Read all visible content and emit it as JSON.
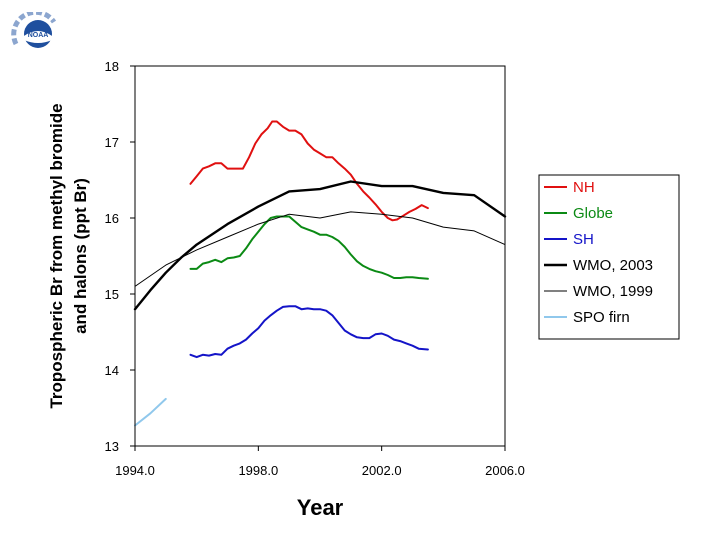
{
  "logo": {
    "text": "NOAA",
    "icon": "noaa-logo-icon",
    "color": "#1f4f9e"
  },
  "chart_data": {
    "type": "line",
    "title": "",
    "xlabel": "Year",
    "ylabel": "Tropospheric Br from methyl bromide and halons (ppt Br)",
    "ylabel_lines": [
      "Tropospheric Br from methyl bromide",
      "and halons (ppt Br)"
    ],
    "xlim": [
      1994,
      2006
    ],
    "ylim": [
      13,
      18
    ],
    "xticks": [
      1994,
      1998,
      2002,
      2006
    ],
    "xtick_labels": [
      "1994.0",
      "1998.0",
      "2002.0",
      "2006.0"
    ],
    "yticks": [
      13,
      14,
      15,
      16,
      17,
      18
    ],
    "ytick_labels": [
      "13",
      "14",
      "15",
      "16",
      "17",
      "18"
    ],
    "grid": false,
    "legend_position": "right",
    "series": [
      {
        "name": "NH",
        "color": "#e01010",
        "width": 2,
        "points": [
          [
            1995.8,
            16.45
          ],
          [
            1996.0,
            16.55
          ],
          [
            1996.2,
            16.65
          ],
          [
            1996.4,
            16.68
          ],
          [
            1996.6,
            16.72
          ],
          [
            1996.8,
            16.72
          ],
          [
            1997.0,
            16.65
          ],
          [
            1997.3,
            16.65
          ],
          [
            1997.5,
            16.65
          ],
          [
            1997.7,
            16.8
          ],
          [
            1997.9,
            16.98
          ],
          [
            1998.1,
            17.1
          ],
          [
            1998.3,
            17.18
          ],
          [
            1998.45,
            17.27
          ],
          [
            1998.6,
            17.27
          ],
          [
            1998.8,
            17.2
          ],
          [
            1999.0,
            17.15
          ],
          [
            1999.2,
            17.15
          ],
          [
            1999.4,
            17.1
          ],
          [
            1999.6,
            16.98
          ],
          [
            1999.8,
            16.9
          ],
          [
            2000.0,
            16.85
          ],
          [
            2000.2,
            16.8
          ],
          [
            2000.4,
            16.8
          ],
          [
            2000.6,
            16.72
          ],
          [
            2000.8,
            16.65
          ],
          [
            2001.0,
            16.57
          ],
          [
            2001.2,
            16.45
          ],
          [
            2001.4,
            16.35
          ],
          [
            2001.6,
            16.27
          ],
          [
            2001.8,
            16.18
          ],
          [
            2002.0,
            16.08
          ],
          [
            2002.2,
            16.0
          ],
          [
            2002.35,
            15.97
          ],
          [
            2002.5,
            15.98
          ],
          [
            2002.7,
            16.03
          ],
          [
            2002.9,
            16.08
          ],
          [
            2003.1,
            16.12
          ],
          [
            2003.3,
            16.17
          ],
          [
            2003.5,
            16.13
          ]
        ]
      },
      {
        "name": "Globe",
        "color": "#0b8a14",
        "width": 2,
        "points": [
          [
            1995.8,
            15.33
          ],
          [
            1996.0,
            15.33
          ],
          [
            1996.2,
            15.4
          ],
          [
            1996.4,
            15.42
          ],
          [
            1996.6,
            15.45
          ],
          [
            1996.8,
            15.42
          ],
          [
            1997.0,
            15.47
          ],
          [
            1997.2,
            15.48
          ],
          [
            1997.4,
            15.5
          ],
          [
            1997.6,
            15.6
          ],
          [
            1997.8,
            15.72
          ],
          [
            1998.0,
            15.82
          ],
          [
            1998.2,
            15.92
          ],
          [
            1998.4,
            16.0
          ],
          [
            1998.6,
            16.02
          ],
          [
            1998.8,
            16.02
          ],
          [
            1999.0,
            16.02
          ],
          [
            1999.2,
            15.95
          ],
          [
            1999.4,
            15.88
          ],
          [
            1999.6,
            15.85
          ],
          [
            1999.8,
            15.82
          ],
          [
            2000.0,
            15.78
          ],
          [
            2000.2,
            15.78
          ],
          [
            2000.4,
            15.75
          ],
          [
            2000.6,
            15.7
          ],
          [
            2000.8,
            15.62
          ],
          [
            2001.0,
            15.52
          ],
          [
            2001.2,
            15.43
          ],
          [
            2001.4,
            15.37
          ],
          [
            2001.6,
            15.33
          ],
          [
            2001.8,
            15.3
          ],
          [
            2002.0,
            15.28
          ],
          [
            2002.2,
            15.25
          ],
          [
            2002.4,
            15.21
          ],
          [
            2002.6,
            15.21
          ],
          [
            2002.8,
            15.22
          ],
          [
            2003.0,
            15.22
          ],
          [
            2003.2,
            15.21
          ],
          [
            2003.5,
            15.2
          ]
        ]
      },
      {
        "name": "SH",
        "color": "#1414c8",
        "width": 2,
        "points": [
          [
            1995.8,
            14.2
          ],
          [
            1996.0,
            14.17
          ],
          [
            1996.2,
            14.2
          ],
          [
            1996.4,
            14.19
          ],
          [
            1996.6,
            14.21
          ],
          [
            1996.8,
            14.2
          ],
          [
            1997.0,
            14.28
          ],
          [
            1997.2,
            14.32
          ],
          [
            1997.4,
            14.35
          ],
          [
            1997.6,
            14.4
          ],
          [
            1997.8,
            14.48
          ],
          [
            1998.0,
            14.55
          ],
          [
            1998.2,
            14.65
          ],
          [
            1998.4,
            14.72
          ],
          [
            1998.6,
            14.78
          ],
          [
            1998.8,
            14.83
          ],
          [
            1999.0,
            14.84
          ],
          [
            1999.2,
            14.84
          ],
          [
            1999.4,
            14.8
          ],
          [
            1999.6,
            14.81
          ],
          [
            1999.8,
            14.8
          ],
          [
            2000.0,
            14.8
          ],
          [
            2000.2,
            14.78
          ],
          [
            2000.4,
            14.72
          ],
          [
            2000.6,
            14.62
          ],
          [
            2000.8,
            14.52
          ],
          [
            2001.0,
            14.47
          ],
          [
            2001.2,
            14.43
          ],
          [
            2001.4,
            14.42
          ],
          [
            2001.6,
            14.42
          ],
          [
            2001.8,
            14.47
          ],
          [
            2002.0,
            14.48
          ],
          [
            2002.2,
            14.45
          ],
          [
            2002.4,
            14.4
          ],
          [
            2002.6,
            14.38
          ],
          [
            2002.8,
            14.35
          ],
          [
            2003.0,
            14.32
          ],
          [
            2003.2,
            14.28
          ],
          [
            2003.5,
            14.27
          ]
        ]
      },
      {
        "name": "WMO, 2003",
        "color": "#000000",
        "width": 2.4,
        "points": [
          [
            1994.0,
            14.8
          ],
          [
            1994.5,
            15.05
          ],
          [
            1995.0,
            15.28
          ],
          [
            1995.5,
            15.48
          ],
          [
            1996.0,
            15.65
          ],
          [
            1997.0,
            15.92
          ],
          [
            1998.0,
            16.15
          ],
          [
            1999.0,
            16.35
          ],
          [
            2000.0,
            16.38
          ],
          [
            2001.0,
            16.48
          ],
          [
            2002.0,
            16.42
          ],
          [
            2003.0,
            16.42
          ],
          [
            2004.0,
            16.33
          ],
          [
            2005.0,
            16.3
          ],
          [
            2006.0,
            16.02
          ]
        ]
      },
      {
        "name": "WMO, 1999",
        "color": "#000000",
        "width": 1,
        "points": [
          [
            1994.0,
            15.1
          ],
          [
            1995.0,
            15.38
          ],
          [
            1996.0,
            15.58
          ],
          [
            1997.0,
            15.75
          ],
          [
            1998.0,
            15.92
          ],
          [
            1999.0,
            16.05
          ],
          [
            2000.0,
            16.0
          ],
          [
            2001.0,
            16.08
          ],
          [
            2002.0,
            16.05
          ],
          [
            2003.0,
            16.0
          ],
          [
            2004.0,
            15.88
          ],
          [
            2005.0,
            15.83
          ],
          [
            2006.0,
            15.65
          ]
        ]
      },
      {
        "name": "SPO firn",
        "color": "#90c8ec",
        "width": 2,
        "points": [
          [
            1994.0,
            13.27
          ],
          [
            1994.5,
            13.43
          ],
          [
            1995.0,
            13.62
          ]
        ]
      }
    ]
  }
}
